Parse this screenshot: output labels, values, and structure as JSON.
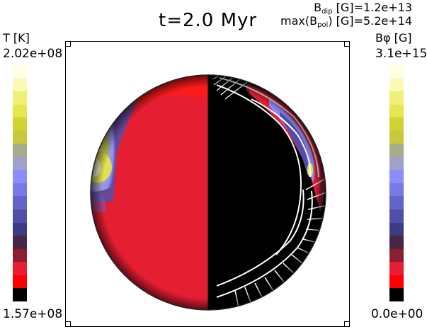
{
  "title": "t=2.0 Myr",
  "annotations": {
    "b_dip_label": "B",
    "b_dip_sub": "dip",
    "b_dip_rest": " [G]=1.2e+13",
    "b_pol_label": "max(B",
    "b_pol_sub": "pol",
    "b_pol_rest": ") [G]=5.2e+14"
  },
  "temperature_bar": {
    "label": "T [K]",
    "max": "2.02e+08",
    "min": "1.57e+08",
    "colors": [
      "#ffffe6",
      "#fafab4",
      "#f0f078",
      "#e6e650",
      "#d2d232",
      "#c8c83c",
      "#aaaa8c",
      "#a0a0c8",
      "#8c8cff",
      "#7878e6",
      "#6464c8",
      "#5050aa",
      "#3c3c82",
      "#462846",
      "#8c1e32",
      "#e61e32",
      "#ff0000",
      "#000000"
    ]
  },
  "bphi_bar": {
    "label": "Bφ [G]",
    "max": "3.1e+15",
    "min": "0.0e+00",
    "colors": [
      "#ffffe6",
      "#fafab4",
      "#f0f078",
      "#e6e650",
      "#d2d232",
      "#c8c83c",
      "#aaaa8c",
      "#a0a0c8",
      "#8c8cff",
      "#7878e6",
      "#6464c8",
      "#5050aa",
      "#3c3c82",
      "#462846",
      "#8c1e32",
      "#e61e32",
      "#ff0000",
      "#000000"
    ]
  },
  "colors": {
    "background": "#ffffff",
    "left_fill": "#e61e32",
    "right_fill": "#000000",
    "field_lines": "#ffffff"
  }
}
